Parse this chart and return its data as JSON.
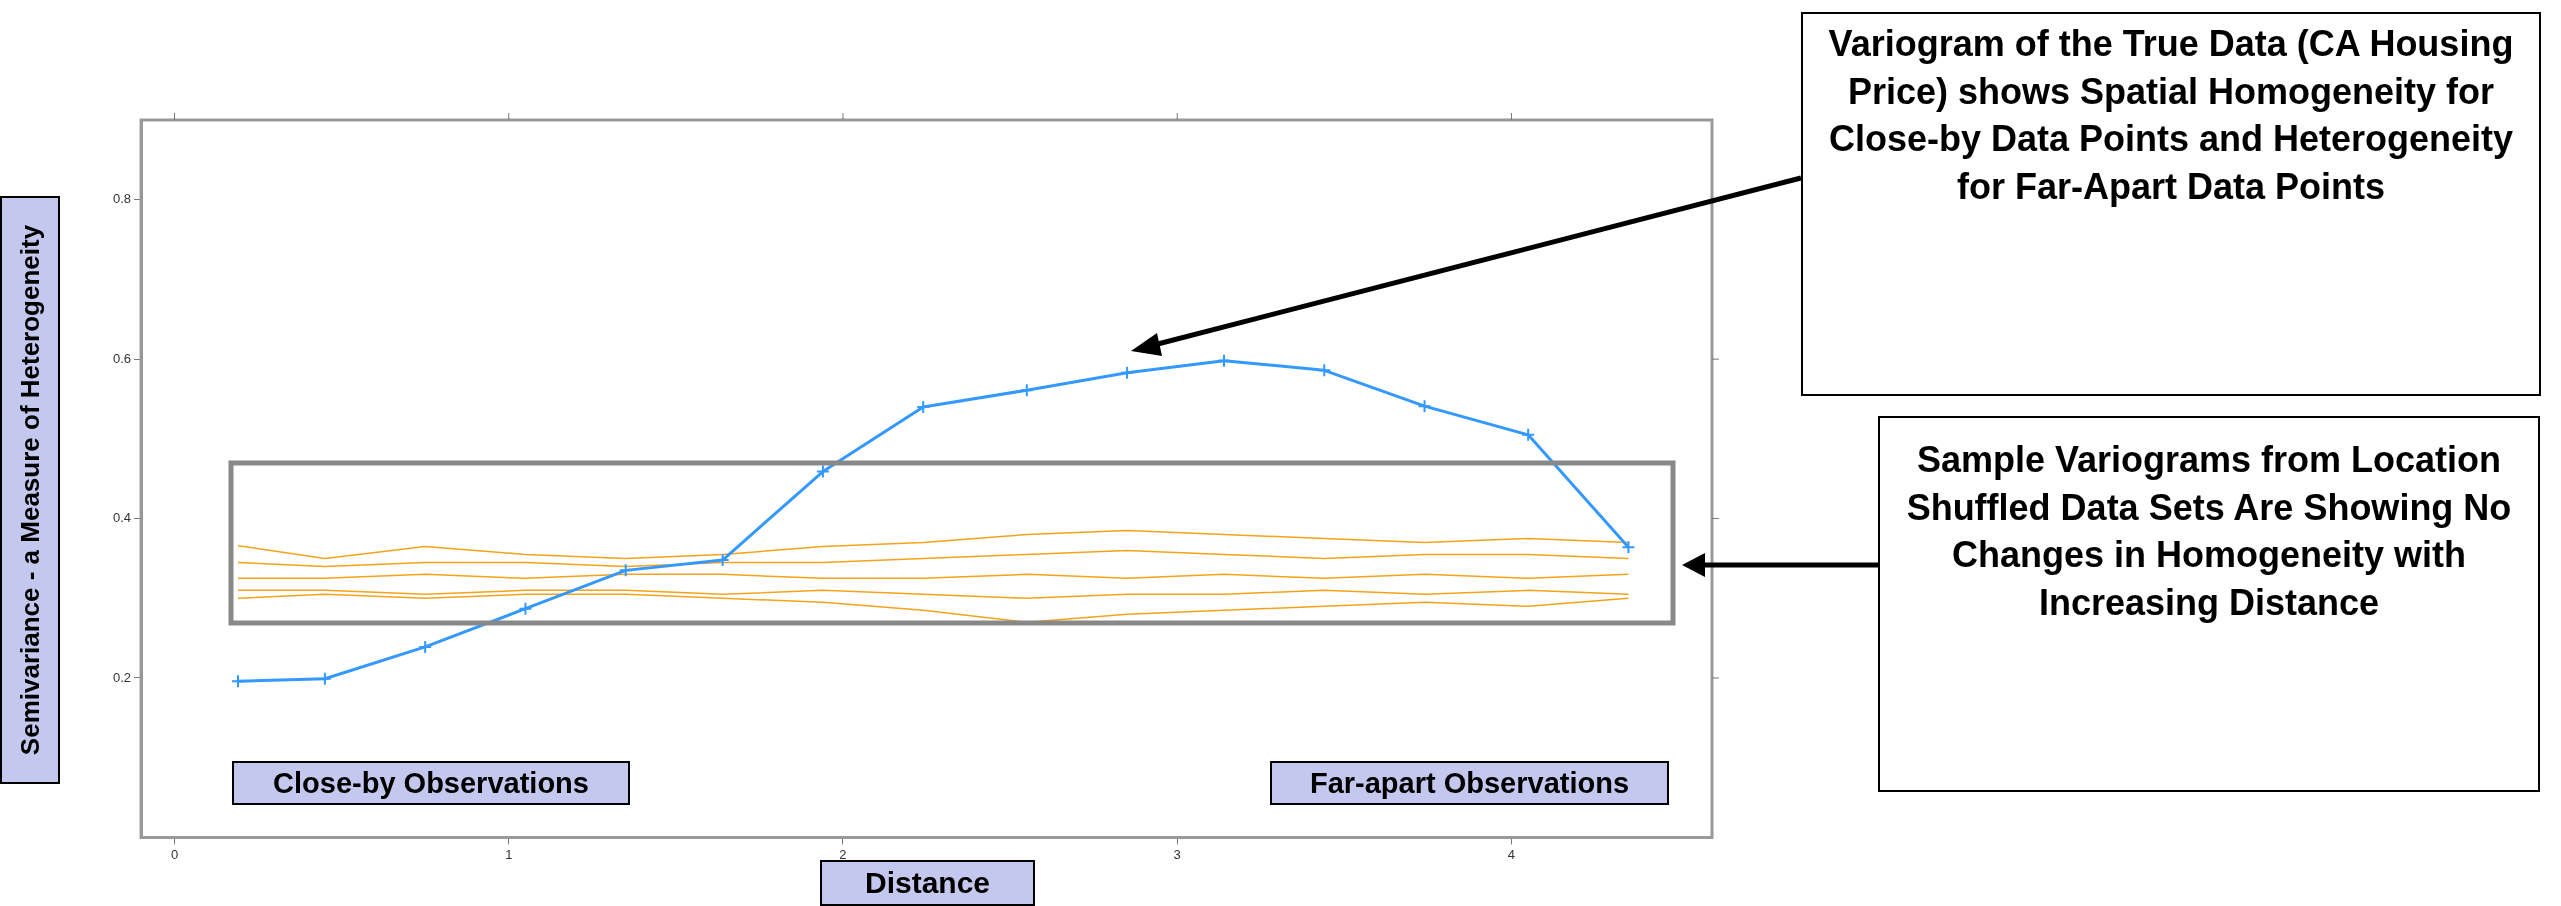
{
  "chart_data": {
    "type": "line",
    "xlabel": "Distance",
    "ylabel": "Semivariance - a Measure of Heterogeneity",
    "x": [
      0.19,
      0.45,
      0.75,
      1.05,
      1.35,
      1.64,
      1.94,
      2.24,
      2.55,
      2.85,
      3.14,
      3.44,
      3.74,
      4.05,
      4.35
    ],
    "series": [
      {
        "color": "#f5a31a",
        "marker": "none",
        "values": [
          0.366,
          0.35,
          0.365,
          0.355,
          0.35,
          0.355,
          0.365,
          0.37,
          0.38,
          0.385,
          0.38,
          0.375,
          0.37,
          0.375,
          0.37
        ]
      },
      {
        "color": "#f5a31a",
        "marker": "none",
        "values": [
          0.345,
          0.34,
          0.345,
          0.345,
          0.34,
          0.345,
          0.345,
          0.35,
          0.355,
          0.36,
          0.355,
          0.35,
          0.355,
          0.355,
          0.35
        ]
      },
      {
        "color": "#f5a31a",
        "marker": "none",
        "values": [
          0.325,
          0.325,
          0.33,
          0.325,
          0.33,
          0.33,
          0.325,
          0.325,
          0.33,
          0.325,
          0.33,
          0.325,
          0.33,
          0.325,
          0.33
        ]
      },
      {
        "color": "#f5a31a",
        "marker": "none",
        "values": [
          0.31,
          0.31,
          0.305,
          0.31,
          0.31,
          0.305,
          0.31,
          0.305,
          0.3,
          0.305,
          0.305,
          0.31,
          0.305,
          0.31,
          0.305
        ]
      },
      {
        "color": "#f5a31a",
        "marker": "none",
        "values": [
          0.3,
          0.305,
          0.3,
          0.305,
          0.305,
          0.3,
          0.295,
          0.285,
          0.27,
          0.28,
          0.285,
          0.29,
          0.295,
          0.29,
          0.3
        ]
      },
      {
        "color": "#3399ff",
        "marker": "cross",
        "values": [
          0.196,
          0.199,
          0.239,
          0.287,
          0.335,
          0.348,
          0.459,
          0.54,
          0.561,
          0.583,
          0.598,
          0.586,
          0.541,
          0.505,
          0.364
        ]
      }
    ],
    "xlim": [
      -0.1,
      4.6
    ],
    "xticks": [
      0,
      1,
      2,
      3,
      4
    ],
    "ylim": [
      0,
      0.9
    ],
    "yticks": [
      0.2,
      0.4,
      0.6,
      0.8
    ],
    "grid": false,
    "legend": false,
    "annotations": [
      "Variogram of the True Data (CA Housing Price) shows Spatial Homogeneity for Close-by Data Points and Heterogeneity for Far-Apart Data Points",
      "Sample Variograms from Location Shuffled Data Sets Are Showing No Changes in Homogeneity with Increasing Distance",
      "Close-by Observations",
      "Far-apart Observations"
    ]
  }
}
